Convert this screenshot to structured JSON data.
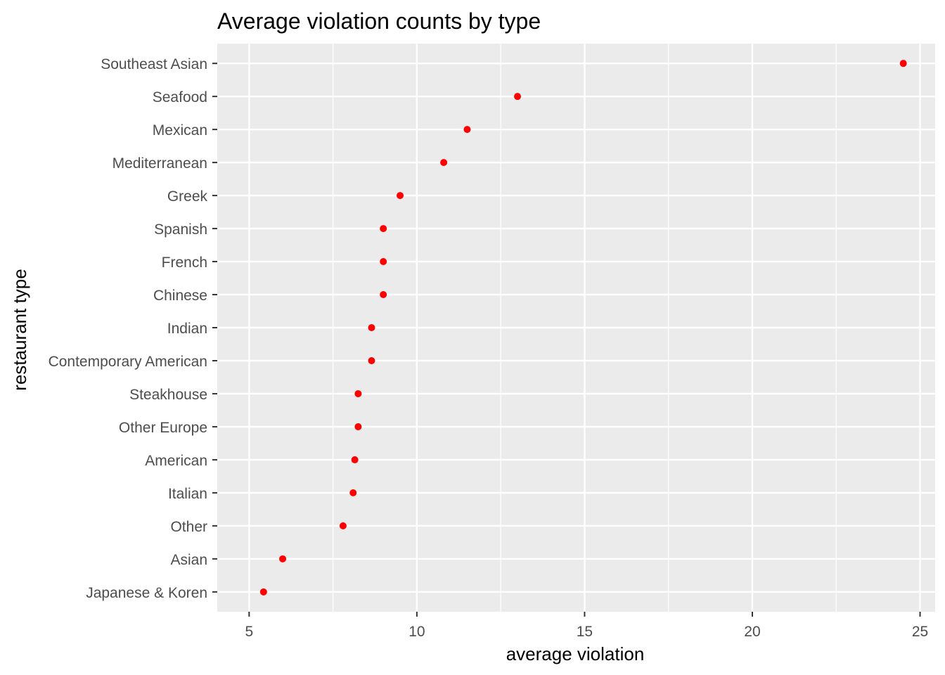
{
  "chart_data": {
    "type": "scatter",
    "title": "Average violation counts by type",
    "xlabel": "average violation",
    "ylabel": "restaurant type",
    "xlim": [
      4.05,
      25.45
    ],
    "x_ticks": [
      "5",
      "10",
      "15",
      "20",
      "25"
    ],
    "x_tick_values": [
      5,
      10,
      15,
      20,
      25
    ],
    "grid": true,
    "legend": "none",
    "point_color": "#ff0000",
    "panel_background": "#ebebeb",
    "grid_color": "#ffffff",
    "categories": [
      "Southeast Asian",
      "Seafood",
      "Mexican",
      "Mediterranean",
      "Greek",
      "Spanish",
      "French",
      "Chinese",
      "Indian",
      "Contemporary American",
      "Steakhouse",
      "Other Europe",
      "American",
      "Italian",
      "Other",
      "Asian",
      "Japanese & Koren"
    ],
    "values": [
      24.5,
      13.0,
      11.5,
      10.8,
      9.5,
      9.0,
      9.0,
      9.0,
      8.65,
      8.65,
      8.25,
      8.25,
      8.15,
      8.1,
      7.8,
      6.0,
      5.43
    ]
  }
}
